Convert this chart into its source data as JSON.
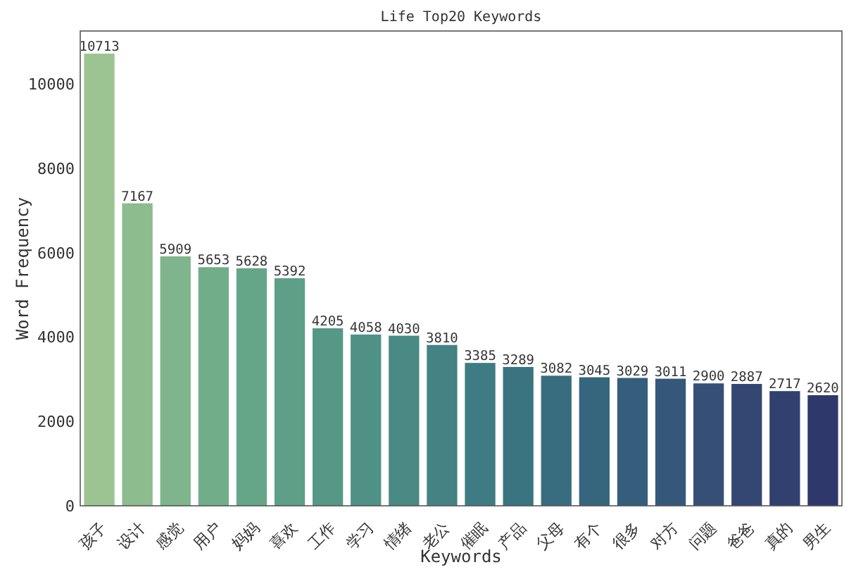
{
  "chart_data": {
    "type": "bar",
    "title": "Life Top20 Keywords",
    "xlabel": "Keywords",
    "ylabel": "Word Frequency",
    "categories": [
      "孩子",
      "设计",
      "感觉",
      "用户",
      "妈妈",
      "喜欢",
      "工作",
      "学习",
      "情绪",
      "老公",
      "催眠",
      "产品",
      "父母",
      "有个",
      "很多",
      "对方",
      "问题",
      "爸爸",
      "真的",
      "男生"
    ],
    "values": [
      10713,
      7167,
      5909,
      5653,
      5628,
      5392,
      4205,
      4058,
      4030,
      3810,
      3385,
      3289,
      3082,
      3045,
      3029,
      3011,
      2900,
      2887,
      2717,
      2620
    ],
    "colors": [
      "#9cc493",
      "#8dbc8f",
      "#7fb48c",
      "#72ad8a",
      "#66a688",
      "#5e9f87",
      "#569886",
      "#4f9185",
      "#498a84",
      "#448283",
      "#3f7b82",
      "#3b7481",
      "#386d80",
      "#36667e",
      "#355e7c",
      "#35577a",
      "#354f77",
      "#344773",
      "#32406f",
      "#2f386b"
    ],
    "data_labels": true,
    "ylim": [
      0,
      11249
    ],
    "yticks": [
      0,
      2000,
      4000,
      6000,
      8000,
      10000
    ],
    "grid": false
  }
}
